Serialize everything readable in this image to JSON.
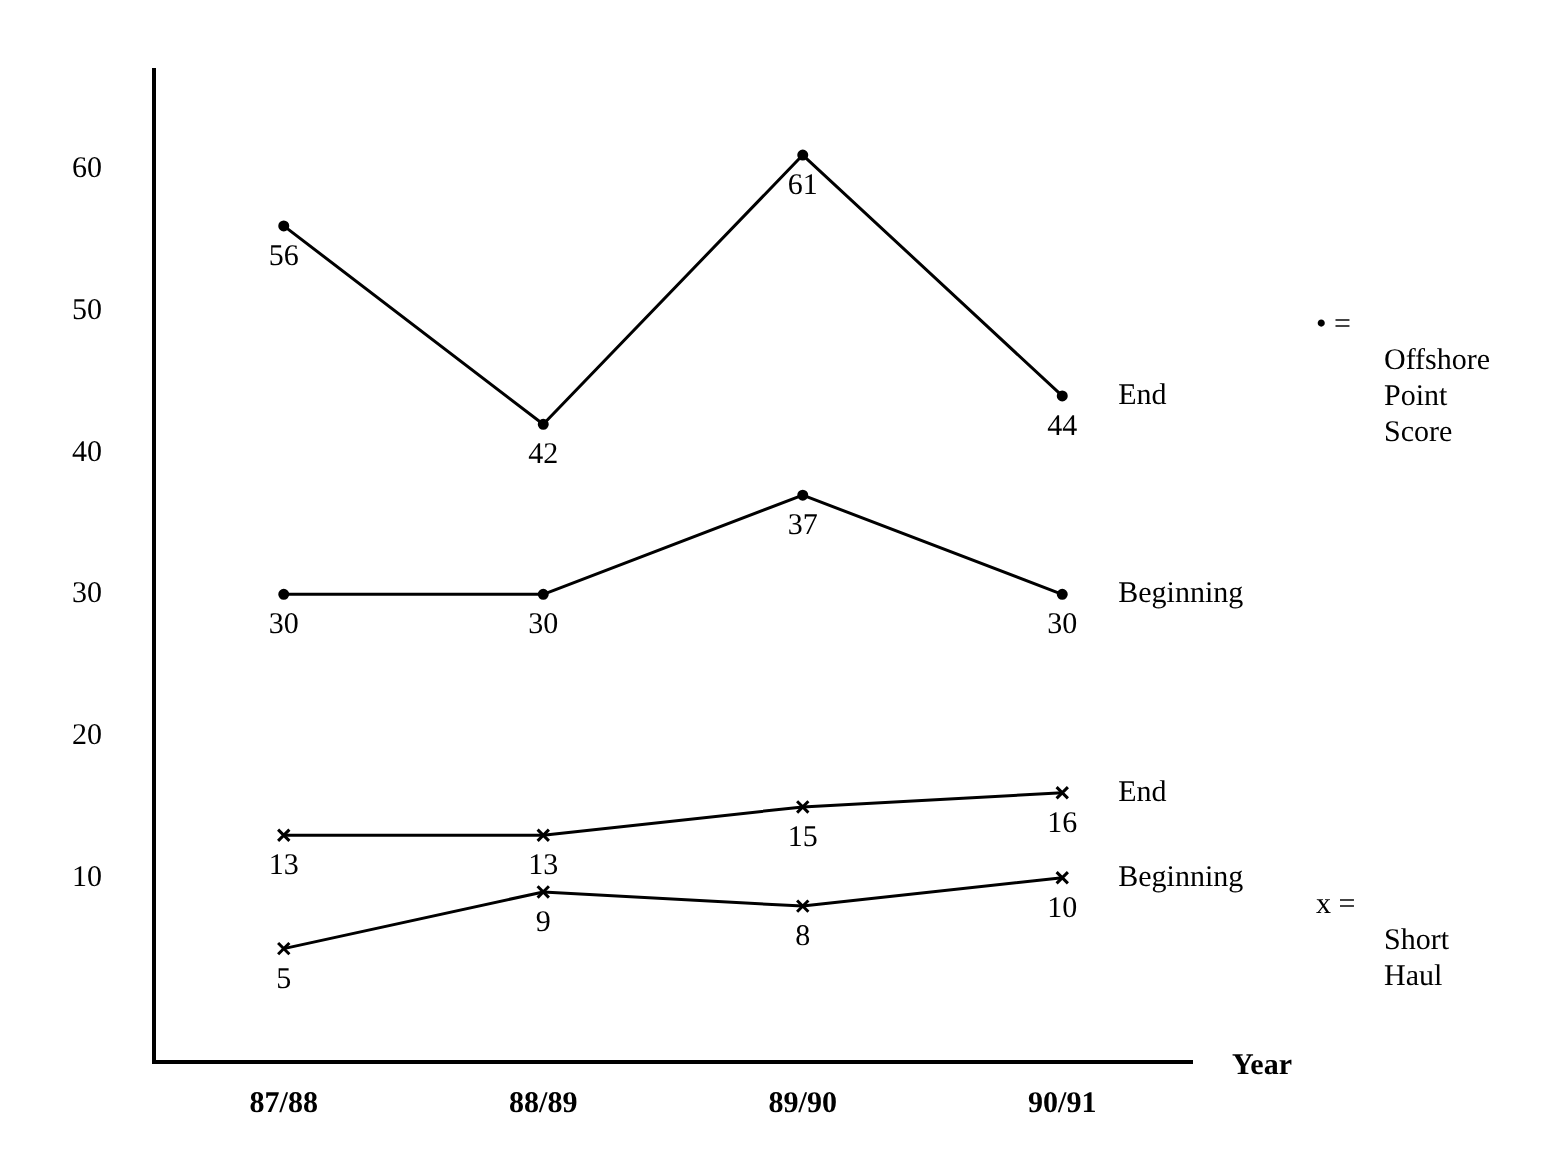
{
  "chart_data": {
    "type": "line",
    "xlabel": "Year",
    "categories": [
      "87/88",
      "88/89",
      "89/90",
      "90/91"
    ],
    "series": [
      {
        "name": "End",
        "color": "#000000",
        "marker": "circle",
        "values": [
          56,
          42,
          61,
          44
        ]
      },
      {
        "name": "Beginning",
        "color": "#000000",
        "marker": "circle",
        "values": [
          30,
          30,
          37,
          30
        ]
      },
      {
        "name": "End",
        "color": "#000000",
        "marker": "cross",
        "values": [
          13,
          13,
          15,
          16
        ]
      },
      {
        "name": "Beginning",
        "color": "#000000",
        "marker": "cross",
        "values": [
          5,
          9,
          8,
          10
        ]
      }
    ],
    "ylim": [
      -3,
      67
    ],
    "yticks": [
      10,
      20,
      30,
      40,
      50,
      60
    ],
    "grid": false,
    "legend": false,
    "data_labels": true,
    "line_style": "solid",
    "annotations": [
      "• = Offshore Point Score",
      "x = Short Haul"
    ]
  }
}
